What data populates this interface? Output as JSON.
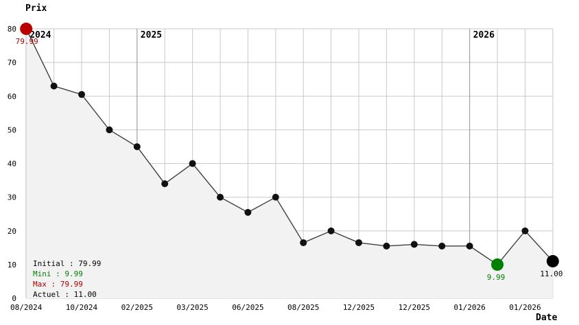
{
  "chart_data": {
    "type": "line",
    "title": "",
    "ylabel": "Prix",
    "xlabel": "Date",
    "ylim": [
      0,
      80
    ],
    "y_ticks": [
      0,
      10,
      20,
      30,
      40,
      50,
      60,
      70,
      80
    ],
    "grid": true,
    "legend_position": "bottom-left",
    "values": [
      79.99,
      63,
      60.5,
      50,
      45,
      34,
      40,
      30,
      25.5,
      30,
      16.5,
      20,
      16.5,
      15.5,
      16,
      15.5,
      15.5,
      9.99,
      20,
      11.0
    ],
    "x_ticks": [
      {
        "index": 0,
        "label": "08/2024"
      },
      {
        "index": 2,
        "label": "10/2024"
      },
      {
        "index": 4,
        "label": "02/2025"
      },
      {
        "index": 6,
        "label": "03/2025"
      },
      {
        "index": 8,
        "label": "06/2025"
      },
      {
        "index": 10,
        "label": "08/2025"
      },
      {
        "index": 12,
        "label": "12/2025"
      },
      {
        "index": 14,
        "label": "12/2025"
      },
      {
        "index": 16,
        "label": "01/2026"
      },
      {
        "index": 18,
        "label": "01/2026"
      }
    ],
    "year_markers": [
      {
        "index": 0,
        "label": "2024"
      },
      {
        "index": 4,
        "label": "2025"
      },
      {
        "index": 16,
        "label": "2026"
      }
    ],
    "special_points": [
      {
        "index": 0,
        "kind": "max",
        "label": "79.99"
      },
      {
        "index": 17,
        "kind": "min",
        "label": "9.99"
      },
      {
        "index": 19,
        "kind": "current",
        "label": "11.00"
      }
    ]
  },
  "legend": {
    "items": [
      {
        "name": "initial",
        "label": "Initial : 79.99",
        "color": "#000000"
      },
      {
        "name": "mini",
        "label": "Mini : 9.99",
        "color": "#008000"
      },
      {
        "name": "max",
        "label": "Max : 79.99",
        "color": "#aa0000"
      },
      {
        "name": "actuel",
        "label": "Actuel : 11.00",
        "color": "#000000"
      }
    ]
  },
  "colors": {
    "line": "#3f3f3f",
    "point": "#111111",
    "max_point": "#bb0000",
    "min_point": "#008000",
    "current_point": "#000000",
    "max_label": "#aa0000",
    "min_label": "#008000",
    "current_label": "#000000",
    "grid": "#c9c9c9",
    "year_line": "#9a9a9a",
    "fill": "#f2f2f2",
    "text": "#000000"
  }
}
